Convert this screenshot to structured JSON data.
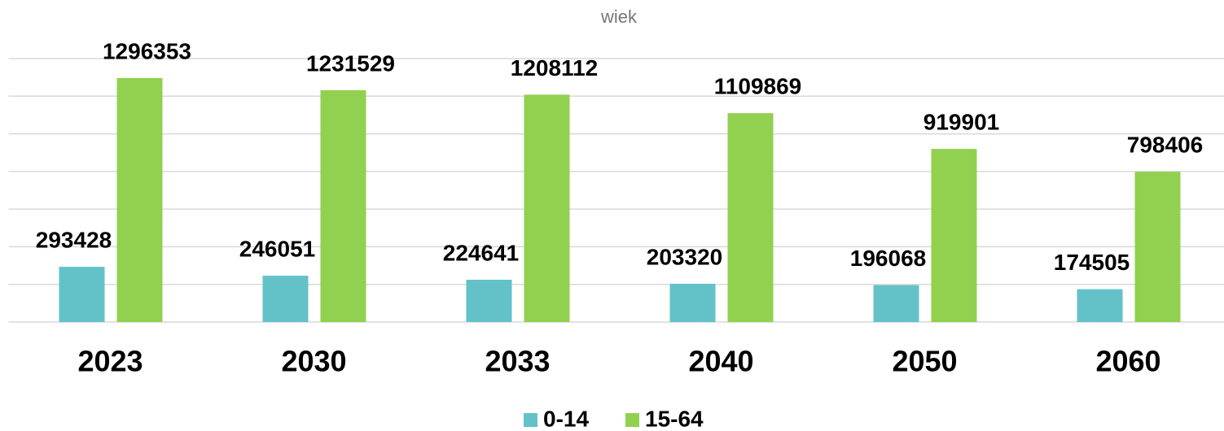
{
  "chart_data": {
    "type": "bar",
    "title": "wiek",
    "categories": [
      "2023",
      "2030",
      "2033",
      "2040",
      "2050",
      "2060"
    ],
    "series": [
      {
        "name": "0-14",
        "color": "#63c2c8",
        "values": [
          293428,
          246051,
          224641,
          203320,
          196068,
          174505
        ]
      },
      {
        "name": "15-64",
        "color": "#92d050",
        "values": [
          1296353,
          1231529,
          1208112,
          1109869,
          919901,
          798406
        ]
      }
    ],
    "ylim": [
      0,
      1400000
    ],
    "yticks": [
      0,
      200000,
      400000,
      600000,
      800000,
      1000000,
      1200000,
      1400000
    ],
    "grid": true,
    "legend": "bottom"
  }
}
